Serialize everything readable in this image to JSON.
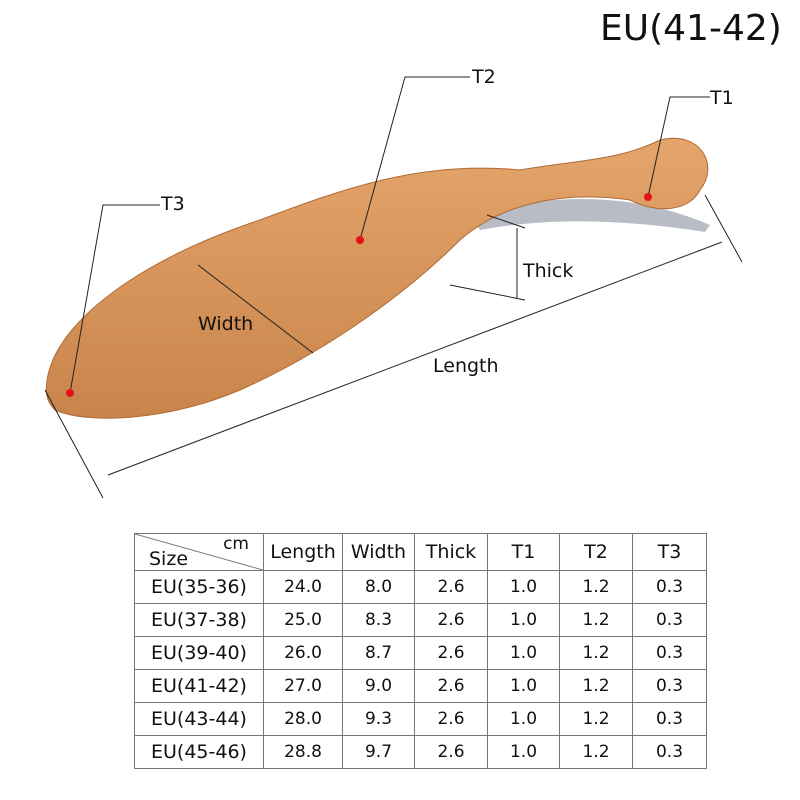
{
  "title": "EU(41-42)",
  "labels": {
    "t1": "T1",
    "t2": "T2",
    "t3": "T3",
    "thick": "Thick",
    "width": "Width",
    "length": "Length"
  },
  "colors": {
    "insole": "#d8945a",
    "marker": "#e5121b"
  },
  "table": {
    "corner_unit": "cm",
    "corner_size": "Size",
    "headers": [
      "Length",
      "Width",
      "Thick",
      "T1",
      "T2",
      "T3"
    ],
    "rows": [
      {
        "size": "EU(35-36)",
        "values": [
          "24.0",
          "8.0",
          "2.6",
          "1.0",
          "1.2",
          "0.3"
        ]
      },
      {
        "size": "EU(37-38)",
        "values": [
          "25.0",
          "8.3",
          "2.6",
          "1.0",
          "1.2",
          "0.3"
        ]
      },
      {
        "size": "EU(39-40)",
        "values": [
          "26.0",
          "8.7",
          "2.6",
          "1.0",
          "1.2",
          "0.3"
        ]
      },
      {
        "size": "EU(41-42)",
        "values": [
          "27.0",
          "9.0",
          "2.6",
          "1.0",
          "1.2",
          "0.3"
        ]
      },
      {
        "size": "EU(43-44)",
        "values": [
          "28.0",
          "9.3",
          "2.6",
          "1.0",
          "1.2",
          "0.3"
        ]
      },
      {
        "size": "EU(45-46)",
        "values": [
          "28.8",
          "9.7",
          "2.6",
          "1.0",
          "1.2",
          "0.3"
        ]
      }
    ]
  }
}
